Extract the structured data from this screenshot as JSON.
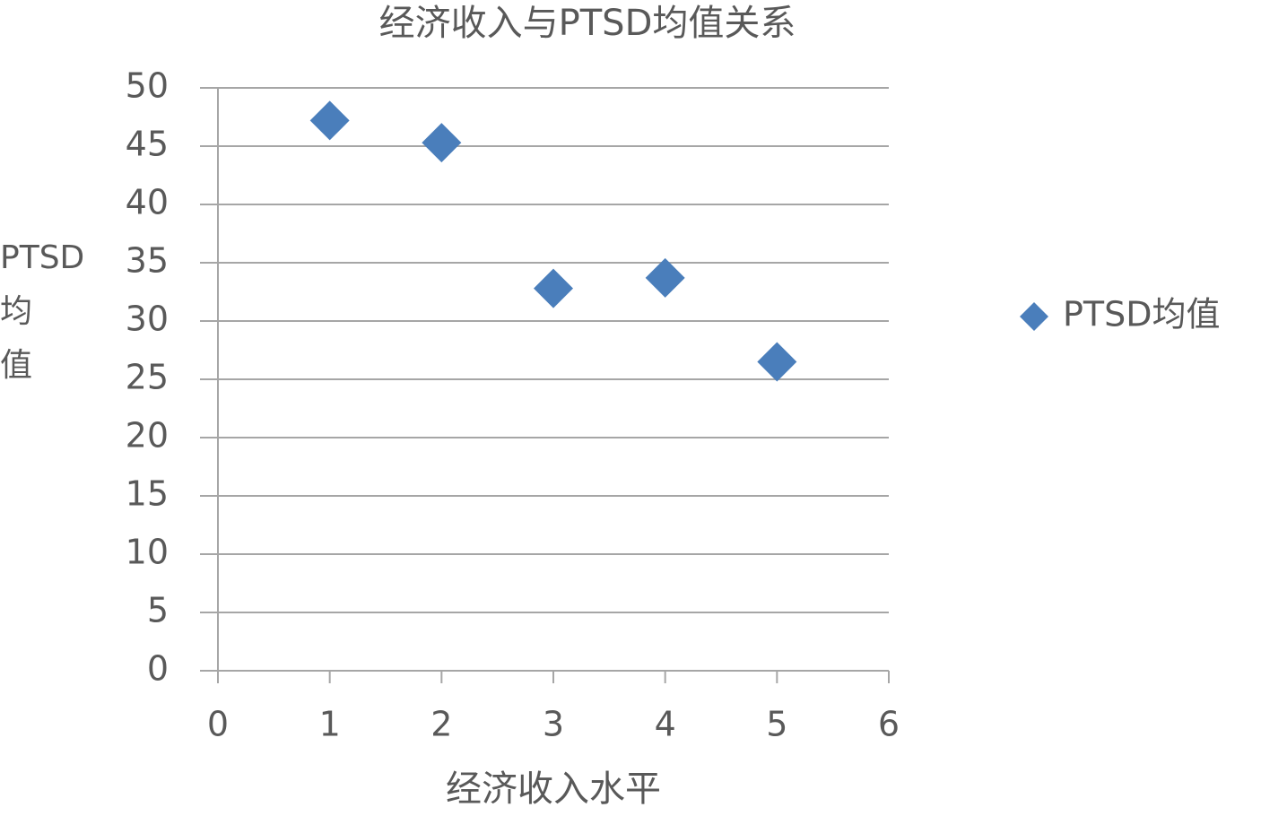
{
  "chart_data": {
    "type": "scatter",
    "title": "经济收入与PTSD均值关系",
    "x_label": "经济收入水平",
    "y_label": "PTSD均值",
    "series": [
      {
        "name": "PTSD均值",
        "color": "#4a7ebb",
        "x": [
          1,
          2,
          3,
          4,
          5
        ],
        "values": [
          47.2,
          45.3,
          32.8,
          33.7,
          26.5
        ]
      }
    ],
    "xlim": [
      0,
      6
    ],
    "xticks": [
      0,
      1,
      2,
      3,
      4,
      5,
      6
    ],
    "ylim": [
      0,
      50
    ],
    "yticks": [
      0,
      5,
      10,
      15,
      20,
      25,
      30,
      35,
      40,
      45,
      50
    ],
    "grid": true,
    "legend": "right"
  }
}
